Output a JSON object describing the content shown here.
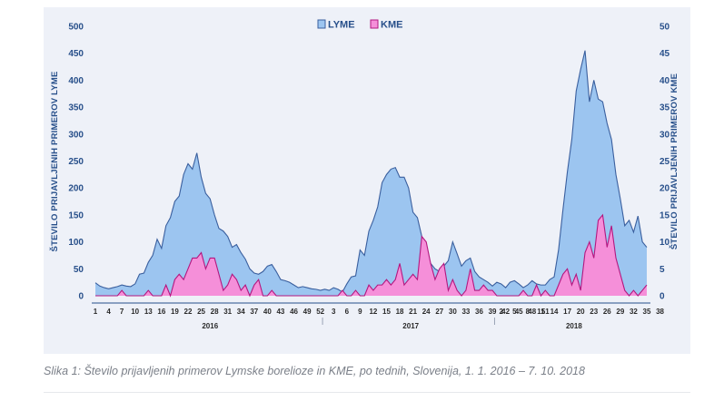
{
  "caption": "Slika 1: Število prijavljenih primerov Lymske borelioze in KME, po tednih, Slovenija, 1. 1. 2016 – 7. 10. 2018",
  "chart_data": {
    "type": "area",
    "title": "",
    "ylabel_left": "ŠTEVILO PRIJAVLJENIH PRIMEROV LYME",
    "ylabel_right": "ŠTEVILO PRIJAVLJENIH PRIMEROV KME",
    "xlabel": "",
    "ylim_left": [
      0,
      500
    ],
    "ylim_right": [
      0,
      50
    ],
    "yticks_left": [
      "0",
      "50",
      "100",
      "150",
      "200",
      "250",
      "300",
      "350",
      "400",
      "450",
      "500"
    ],
    "yticks_right": [
      "0",
      "5",
      "10",
      "15",
      "20",
      "25",
      "30",
      "35",
      "40",
      "45",
      "50"
    ],
    "legend_position": "top-center",
    "grid": false,
    "years": [
      "2016",
      "2017",
      "2018"
    ],
    "x_tick_labels": {
      "2016": [
        "1",
        "4",
        "7",
        "10",
        "13",
        "16",
        "19",
        "22",
        "25",
        "28",
        "31",
        "34",
        "37",
        "40",
        "43",
        "46",
        "49",
        "52"
      ],
      "2017": [
        "3",
        "6",
        "9",
        "12",
        "15",
        "18",
        "21",
        "24",
        "27",
        "30",
        "33",
        "36",
        "39",
        "42",
        "45",
        "48",
        "51"
      ],
      "2018": [
        "2",
        "5",
        "8",
        "11",
        "14",
        "17",
        "20",
        "23",
        "26",
        "29",
        "32",
        "35",
        "38"
      ]
    },
    "series": [
      {
        "name": "LYME",
        "axis": "left",
        "color": "#9cc5f0",
        "stroke": "#3a5f9e",
        "values_2016": [
          24,
          18,
          15,
          13,
          15,
          17,
          20,
          18,
          17,
          22,
          40,
          42,
          62,
          75,
          105,
          88,
          130,
          145,
          175,
          185,
          225,
          245,
          235,
          265,
          220,
          190,
          180,
          150,
          125,
          120,
          110,
          90,
          95,
          80,
          68,
          50,
          42,
          40,
          45,
          55,
          58,
          45,
          30,
          28,
          25,
          20,
          15,
          17,
          15,
          13,
          12,
          10
        ],
        "values_2017": [
          12,
          10,
          15,
          12,
          7,
          22,
          35,
          37,
          85,
          75,
          120,
          140,
          165,
          210,
          225,
          235,
          238,
          220,
          220,
          200,
          155,
          145,
          110,
          80,
          60,
          50,
          45,
          55,
          65,
          100,
          78,
          55,
          65,
          70,
          45,
          35,
          30,
          25,
          18
        ],
        "values_2018": [
          25,
          22,
          15,
          25,
          28,
          22,
          15,
          20,
          28,
          22,
          20,
          20,
          30,
          35,
          85,
          160,
          230,
          290,
          380,
          420,
          455,
          360,
          400,
          365,
          360,
          320,
          290,
          225,
          180,
          130,
          140,
          118,
          148,
          100,
          90
        ]
      },
      {
        "name": "KME",
        "axis": "right",
        "color": "#f58fd9",
        "stroke": "#b3177f",
        "values_2016": [
          0,
          0,
          0,
          0,
          0,
          0,
          1,
          0,
          0,
          0,
          0,
          0,
          1,
          0,
          0,
          0,
          2,
          0,
          3,
          4,
          3,
          5,
          7,
          7,
          8,
          5,
          7,
          7,
          4,
          1,
          2,
          4,
          3,
          1,
          2,
          0,
          2,
          3,
          0,
          0,
          1,
          0,
          0,
          0,
          0,
          0,
          0,
          0,
          0,
          0,
          0,
          0
        ],
        "values_2017": [
          0,
          0,
          0,
          0,
          1,
          0,
          0,
          1,
          0,
          0,
          2,
          1,
          2,
          2,
          3,
          2,
          3,
          6,
          2,
          3,
          4,
          3,
          11,
          10,
          6,
          3,
          5,
          6,
          1,
          3,
          1,
          0,
          1,
          5,
          1,
          1,
          2,
          1,
          1
        ],
        "values_2018": [
          0,
          0,
          0,
          0,
          0,
          0,
          1,
          0,
          0,
          2,
          0,
          1,
          0,
          0,
          2,
          4,
          5,
          2,
          4,
          1,
          8,
          10,
          7,
          14,
          15,
          9,
          13,
          7,
          4,
          1,
          0,
          1,
          0,
          1,
          2
        ]
      }
    ]
  }
}
